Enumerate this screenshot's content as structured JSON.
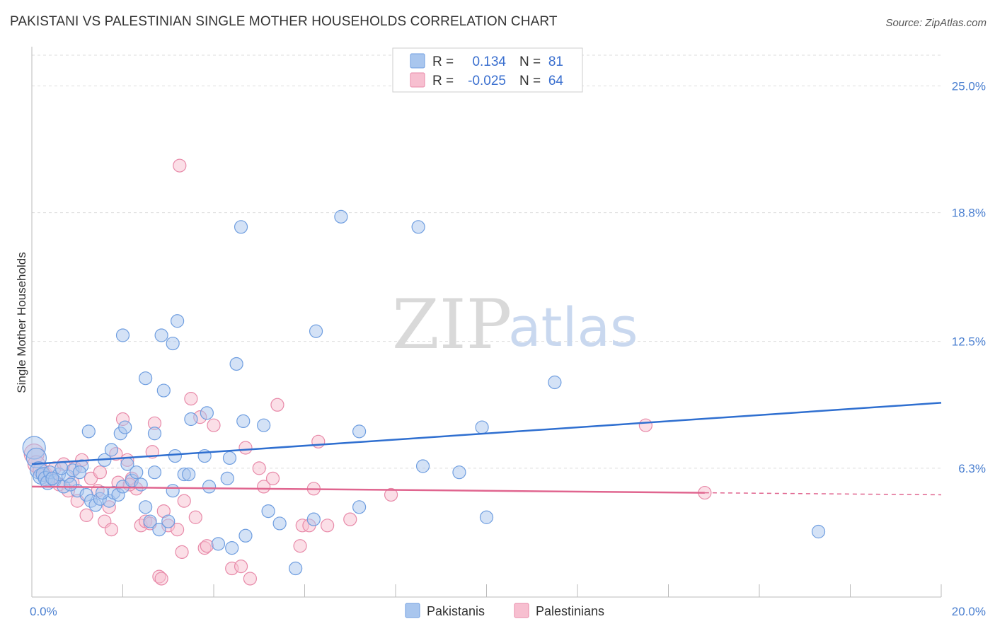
{
  "title": "PAKISTANI VS PALESTINIAN SINGLE MOTHER HOUSEHOLDS CORRELATION CHART",
  "source": "Source: ZipAtlas.com",
  "watermark": {
    "zip": "ZIP",
    "atlas": "atlas"
  },
  "legend": {
    "r_label": "R =",
    "n_label": "N =",
    "rows": [
      {
        "r": "0.134",
        "n": "81",
        "color": "#a9c6ee",
        "stroke": "#6f9ee0"
      },
      {
        "r": "-0.025",
        "n": "64",
        "color": "#f7bfd0",
        "stroke": "#e88aa9"
      }
    ]
  },
  "bottom_legend": [
    "Pakistanis",
    "Palestinians"
  ],
  "colors": {
    "blue_fill": "#a9c6ee",
    "blue_stroke": "#6f9ee0",
    "blue_line": "#2f6fd0",
    "pink_fill": "#f7bfd0",
    "pink_stroke": "#e88aa9",
    "pink_line": "#e0658f",
    "grid": "#dddddd",
    "tick_text": "#4a7fd0"
  },
  "chart_data": {
    "type": "scatter",
    "title": "PAKISTANI VS PALESTINIAN SINGLE MOTHER HOUSEHOLDS CORRELATION CHART",
    "xlabel": "",
    "ylabel": "Single Mother Households",
    "xlim": [
      0,
      20
    ],
    "ylim": [
      0,
      26.5
    ],
    "x_tick_labels": [
      "0.0%",
      "20.0%"
    ],
    "y_ticks": [
      6.3,
      12.5,
      18.8,
      25.0
    ],
    "y_tick_labels": [
      "6.3%",
      "12.5%",
      "18.8%",
      "25.0%"
    ],
    "series": [
      {
        "name": "Pakistanis",
        "r": 0.134,
        "n": 81,
        "trend": {
          "x0": 0,
          "y0": 6.5,
          "x1": 20,
          "y1": 9.5,
          "dashed_from": null
        },
        "points": [
          {
            "x": 0.05,
            "y": 7.3,
            "s": 16
          },
          {
            "x": 0.1,
            "y": 6.8,
            "s": 14
          },
          {
            "x": 0.15,
            "y": 6.2,
            "s": 12
          },
          {
            "x": 0.2,
            "y": 5.9,
            "s": 11
          },
          {
            "x": 0.25,
            "y": 6.0,
            "s": 10
          },
          {
            "x": 0.3,
            "y": 5.8,
            "s": 10
          },
          {
            "x": 0.35,
            "y": 5.6,
            "s": 10
          },
          {
            "x": 0.4,
            "y": 6.1,
            "s": 9
          },
          {
            "x": 0.5,
            "y": 5.7,
            "s": 9
          },
          {
            "x": 0.6,
            "y": 6.0,
            "s": 9
          },
          {
            "x": 0.7,
            "y": 5.4,
            "s": 9
          },
          {
            "x": 0.8,
            "y": 5.9,
            "s": 9
          },
          {
            "x": 0.9,
            "y": 6.2,
            "s": 9
          },
          {
            "x": 1.0,
            "y": 5.2,
            "s": 9
          },
          {
            "x": 1.1,
            "y": 6.4,
            "s": 9
          },
          {
            "x": 1.2,
            "y": 5.0,
            "s": 9
          },
          {
            "x": 1.3,
            "y": 4.7,
            "s": 9
          },
          {
            "x": 1.4,
            "y": 4.5,
            "s": 9
          },
          {
            "x": 1.5,
            "y": 4.8,
            "s": 9
          },
          {
            "x": 1.6,
            "y": 6.7,
            "s": 9
          },
          {
            "x": 1.7,
            "y": 4.7,
            "s": 9
          },
          {
            "x": 1.8,
            "y": 5.1,
            "s": 9
          },
          {
            "x": 1.9,
            "y": 5.0,
            "s": 9
          },
          {
            "x": 2.0,
            "y": 5.4,
            "s": 9
          },
          {
            "x": 2.1,
            "y": 6.5,
            "s": 9
          },
          {
            "x": 2.2,
            "y": 5.7,
            "s": 9
          },
          {
            "x": 2.3,
            "y": 6.1,
            "s": 9
          },
          {
            "x": 2.4,
            "y": 5.5,
            "s": 9
          },
          {
            "x": 2.5,
            "y": 4.4,
            "s": 9
          },
          {
            "x": 2.6,
            "y": 3.7,
            "s": 9
          },
          {
            "x": 2.7,
            "y": 6.1,
            "s": 9
          },
          {
            "x": 2.8,
            "y": 3.3,
            "s": 9
          },
          {
            "x": 3.0,
            "y": 3.7,
            "s": 9
          },
          {
            "x": 3.1,
            "y": 5.2,
            "s": 9
          },
          {
            "x": 1.25,
            "y": 8.1,
            "s": 9
          },
          {
            "x": 1.75,
            "y": 7.2,
            "s": 9
          },
          {
            "x": 1.95,
            "y": 8.0,
            "s": 9
          },
          {
            "x": 2.0,
            "y": 12.8,
            "s": 9
          },
          {
            "x": 2.05,
            "y": 8.3,
            "s": 9
          },
          {
            "x": 2.5,
            "y": 10.7,
            "s": 9
          },
          {
            "x": 2.7,
            "y": 8.0,
            "s": 9
          },
          {
            "x": 2.85,
            "y": 12.8,
            "s": 9
          },
          {
            "x": 2.9,
            "y": 10.1,
            "s": 9
          },
          {
            "x": 3.1,
            "y": 12.4,
            "s": 9
          },
          {
            "x": 3.15,
            "y": 6.9,
            "s": 9
          },
          {
            "x": 3.2,
            "y": 13.5,
            "s": 9
          },
          {
            "x": 3.35,
            "y": 6.0,
            "s": 9
          },
          {
            "x": 3.45,
            "y": 6.0,
            "s": 9
          },
          {
            "x": 3.5,
            "y": 8.7,
            "s": 9
          },
          {
            "x": 3.8,
            "y": 6.9,
            "s": 9
          },
          {
            "x": 3.85,
            "y": 9.0,
            "s": 9
          },
          {
            "x": 3.9,
            "y": 5.4,
            "s": 9
          },
          {
            "x": 4.1,
            "y": 2.6,
            "s": 9
          },
          {
            "x": 4.3,
            "y": 5.8,
            "s": 9
          },
          {
            "x": 4.35,
            "y": 6.8,
            "s": 9
          },
          {
            "x": 4.4,
            "y": 2.4,
            "s": 9
          },
          {
            "x": 4.5,
            "y": 11.4,
            "s": 9
          },
          {
            "x": 4.6,
            "y": 18.1,
            "s": 9
          },
          {
            "x": 4.65,
            "y": 8.6,
            "s": 9
          },
          {
            "x": 4.7,
            "y": 3.0,
            "s": 9
          },
          {
            "x": 5.1,
            "y": 8.4,
            "s": 9
          },
          {
            "x": 5.2,
            "y": 4.2,
            "s": 9
          },
          {
            "x": 5.45,
            "y": 3.6,
            "s": 9
          },
          {
            "x": 5.8,
            "y": 1.4,
            "s": 9
          },
          {
            "x": 6.2,
            "y": 3.8,
            "s": 9
          },
          {
            "x": 6.25,
            "y": 13.0,
            "s": 9
          },
          {
            "x": 6.8,
            "y": 18.6,
            "s": 9
          },
          {
            "x": 7.2,
            "y": 4.4,
            "s": 9
          },
          {
            "x": 7.2,
            "y": 8.1,
            "s": 9
          },
          {
            "x": 8.5,
            "y": 18.1,
            "s": 9
          },
          {
            "x": 8.6,
            "y": 6.4,
            "s": 9
          },
          {
            "x": 9.4,
            "y": 6.1,
            "s": 9
          },
          {
            "x": 9.9,
            "y": 8.3,
            "s": 9
          },
          {
            "x": 10.0,
            "y": 3.9,
            "s": 9
          },
          {
            "x": 11.5,
            "y": 10.5,
            "s": 9
          },
          {
            "x": 17.3,
            "y": 3.2,
            "s": 9
          },
          {
            "x": 0.45,
            "y": 5.8,
            "s": 9
          },
          {
            "x": 0.65,
            "y": 6.3,
            "s": 9
          },
          {
            "x": 0.85,
            "y": 5.5,
            "s": 9
          },
          {
            "x": 1.05,
            "y": 6.1,
            "s": 9
          },
          {
            "x": 1.55,
            "y": 5.1,
            "s": 9
          }
        ]
      },
      {
        "name": "Palestinians",
        "r": -0.025,
        "n": 64,
        "trend": {
          "x0": 0,
          "y0": 5.4,
          "x1": 14.8,
          "y1": 5.1,
          "dashed_from": 14.8,
          "dashed_to": 20,
          "dashed_y1": 5.0
        },
        "points": [
          {
            "x": 0.05,
            "y": 7.0,
            "s": 14
          },
          {
            "x": 0.1,
            "y": 6.5,
            "s": 12
          },
          {
            "x": 0.2,
            "y": 6.2,
            "s": 11
          },
          {
            "x": 0.3,
            "y": 6.0,
            "s": 10
          },
          {
            "x": 0.4,
            "y": 5.8,
            "s": 10
          },
          {
            "x": 0.5,
            "y": 6.3,
            "s": 9
          },
          {
            "x": 0.6,
            "y": 5.5,
            "s": 9
          },
          {
            "x": 0.7,
            "y": 6.5,
            "s": 9
          },
          {
            "x": 0.8,
            "y": 5.2,
            "s": 9
          },
          {
            "x": 0.9,
            "y": 5.6,
            "s": 9
          },
          {
            "x": 1.0,
            "y": 4.7,
            "s": 9
          },
          {
            "x": 1.1,
            "y": 6.7,
            "s": 9
          },
          {
            "x": 1.2,
            "y": 4.0,
            "s": 9
          },
          {
            "x": 1.3,
            "y": 5.8,
            "s": 9
          },
          {
            "x": 1.5,
            "y": 6.1,
            "s": 9
          },
          {
            "x": 1.6,
            "y": 3.7,
            "s": 9
          },
          {
            "x": 1.7,
            "y": 4.4,
            "s": 9
          },
          {
            "x": 1.75,
            "y": 3.3,
            "s": 9
          },
          {
            "x": 1.85,
            "y": 7.0,
            "s": 9
          },
          {
            "x": 1.9,
            "y": 5.6,
            "s": 9
          },
          {
            "x": 2.0,
            "y": 8.7,
            "s": 9
          },
          {
            "x": 2.1,
            "y": 6.7,
            "s": 9
          },
          {
            "x": 2.2,
            "y": 5.8,
            "s": 9
          },
          {
            "x": 2.3,
            "y": 5.3,
            "s": 9
          },
          {
            "x": 2.4,
            "y": 3.5,
            "s": 9
          },
          {
            "x": 2.5,
            "y": 3.7,
            "s": 9
          },
          {
            "x": 2.6,
            "y": 3.6,
            "s": 9
          },
          {
            "x": 2.65,
            "y": 7.1,
            "s": 9
          },
          {
            "x": 2.7,
            "y": 8.5,
            "s": 9
          },
          {
            "x": 2.8,
            "y": 1.0,
            "s": 9
          },
          {
            "x": 2.85,
            "y": 0.9,
            "s": 9
          },
          {
            "x": 2.9,
            "y": 4.2,
            "s": 9
          },
          {
            "x": 3.0,
            "y": 3.5,
            "s": 9
          },
          {
            "x": 3.2,
            "y": 3.3,
            "s": 9
          },
          {
            "x": 3.3,
            "y": 2.2,
            "s": 9
          },
          {
            "x": 3.35,
            "y": 4.7,
            "s": 9
          },
          {
            "x": 3.5,
            "y": 9.7,
            "s": 9
          },
          {
            "x": 3.6,
            "y": 3.9,
            "s": 9
          },
          {
            "x": 3.7,
            "y": 8.8,
            "s": 9
          },
          {
            "x": 3.8,
            "y": 2.4,
            "s": 9
          },
          {
            "x": 3.85,
            "y": 2.5,
            "s": 9
          },
          {
            "x": 4.0,
            "y": 8.4,
            "s": 9
          },
          {
            "x": 4.4,
            "y": 1.4,
            "s": 9
          },
          {
            "x": 4.6,
            "y": 1.5,
            "s": 9
          },
          {
            "x": 4.7,
            "y": 7.3,
            "s": 9
          },
          {
            "x": 4.8,
            "y": 0.9,
            "s": 9
          },
          {
            "x": 5.0,
            "y": 6.3,
            "s": 9
          },
          {
            "x": 5.1,
            "y": 5.4,
            "s": 9
          },
          {
            "x": 5.3,
            "y": 5.8,
            "s": 9
          },
          {
            "x": 5.4,
            "y": 9.4,
            "s": 9
          },
          {
            "x": 5.9,
            "y": 2.5,
            "s": 9
          },
          {
            "x": 5.95,
            "y": 3.5,
            "s": 9
          },
          {
            "x": 6.1,
            "y": 3.5,
            "s": 9
          },
          {
            "x": 6.2,
            "y": 5.3,
            "s": 9
          },
          {
            "x": 6.3,
            "y": 7.6,
            "s": 9
          },
          {
            "x": 6.5,
            "y": 3.5,
            "s": 9
          },
          {
            "x": 7.0,
            "y": 3.8,
            "s": 9
          },
          {
            "x": 7.9,
            "y": 5.0,
            "s": 9
          },
          {
            "x": 3.25,
            "y": 21.1,
            "s": 9
          },
          {
            "x": 13.5,
            "y": 8.4,
            "s": 9
          },
          {
            "x": 14.8,
            "y": 5.1,
            "s": 9
          },
          {
            "x": 0.95,
            "y": 6.3,
            "s": 9
          },
          {
            "x": 1.45,
            "y": 5.2,
            "s": 9
          },
          {
            "x": 2.15,
            "y": 5.5,
            "s": 9
          }
        ]
      }
    ]
  }
}
